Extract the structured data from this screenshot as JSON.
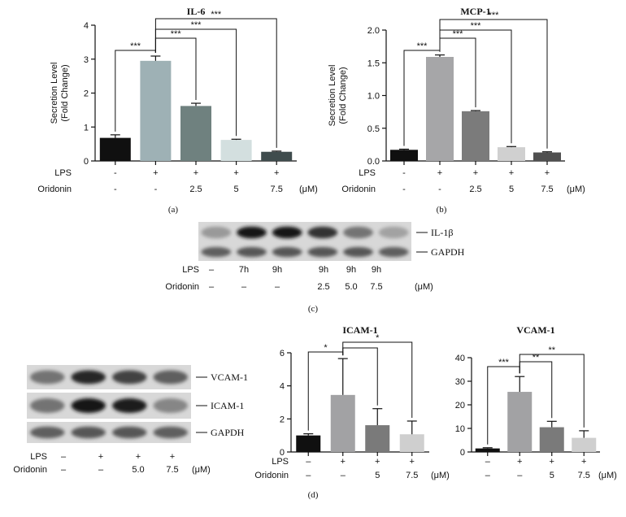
{
  "chart_data": [
    {
      "type": "bar",
      "panel": "(a)",
      "title": "IL-6",
      "ylabel": "Secretion Level (Fold Change)",
      "ylabel_lines": [
        "Secretion Level",
        "(Fold Change)"
      ],
      "ylim": [
        0,
        4
      ],
      "yticks": [
        "0",
        "1",
        "2",
        "3",
        "4"
      ],
      "categories": [
        "1",
        "2",
        "3",
        "4",
        "5"
      ],
      "values": [
        0.68,
        2.95,
        1.62,
        0.62,
        0.27
      ],
      "errors": [
        0.09,
        0.14,
        0.08,
        0.02,
        0.02
      ],
      "colors": [
        "#101010",
        "#9eb1b5",
        "#6f817f",
        "#d3dfdf",
        "#3f4c4d"
      ],
      "treatments": [
        {
          "label": "LPS",
          "values": [
            "-",
            "+",
            "+",
            "+",
            "+"
          ]
        },
        {
          "label": "Oridonin",
          "values": [
            "-",
            "-",
            "2.5",
            "5",
            "7.5"
          ]
        }
      ],
      "unit": "(μM)",
      "significance": [
        {
          "from": 0,
          "to": 1,
          "label": "***"
        },
        {
          "from": 1,
          "to": 2,
          "label": "***"
        },
        {
          "from": 1,
          "to": 3,
          "label": "***"
        },
        {
          "from": 1,
          "to": 4,
          "label": "***"
        }
      ]
    },
    {
      "type": "bar",
      "panel": "(b)",
      "title": "MCP-1",
      "ylabel": "Secretion Level (Fold Change)",
      "ylabel_lines": [
        "Secretion Level",
        "(Fold Change)"
      ],
      "ylim": [
        0,
        2
      ],
      "yticks": [
        "0.0",
        "0.5",
        "1.0",
        "1.5",
        "2.0"
      ],
      "categories": [
        "1",
        "2",
        "3",
        "4",
        "5"
      ],
      "values": [
        0.17,
        1.59,
        0.76,
        0.21,
        0.13
      ],
      "errors": [
        0.01,
        0.03,
        0.01,
        0.01,
        0.01
      ],
      "colors": [
        "#101010",
        "#a6a6a8",
        "#7b7b7b",
        "#d0d0d0",
        "#505050"
      ],
      "treatments": [
        {
          "label": "LPS",
          "values": [
            "-",
            "+",
            "+",
            "+",
            "+"
          ]
        },
        {
          "label": "Oridonin",
          "values": [
            "-",
            "-",
            "2.5",
            "5",
            "7.5"
          ]
        }
      ],
      "unit": "(μM)",
      "significance": [
        {
          "from": 0,
          "to": 1,
          "label": "***"
        },
        {
          "from": 1,
          "to": 2,
          "label": "***"
        },
        {
          "from": 1,
          "to": 3,
          "label": "***"
        },
        {
          "from": 1,
          "to": 4,
          "label": "***"
        }
      ]
    },
    {
      "type": "bar",
      "panel": "(d)",
      "title": "ICAM-1",
      "ylim": [
        0,
        6
      ],
      "yticks": [
        "0",
        "2",
        "4",
        "6"
      ],
      "categories": [
        "1",
        "2",
        "3",
        "4"
      ],
      "values": [
        1.0,
        3.45,
        1.62,
        1.07
      ],
      "errors": [
        0.1,
        2.2,
        1.0,
        0.8
      ],
      "colors": [
        "#101010",
        "#a2a2a4",
        "#7a7a7a",
        "#cfcfcf"
      ],
      "treatments": [
        {
          "label": "LPS",
          "values": [
            "–",
            "+",
            "+",
            "+"
          ]
        },
        {
          "label": "Oridonin",
          "values": [
            "–",
            "–",
            "5",
            "7.5"
          ]
        }
      ],
      "unit": "(μM)",
      "significance": [
        {
          "from": 0,
          "to": 1,
          "label": "*"
        },
        {
          "from": 1,
          "to": 2,
          "label": ""
        },
        {
          "from": 1,
          "to": 3,
          "label": "*"
        }
      ]
    },
    {
      "type": "bar",
      "panel": "(d)",
      "title": "VCAM-1",
      "ylim": [
        0,
        40
      ],
      "yticks": [
        "0",
        "10",
        "20",
        "30",
        "40"
      ],
      "categories": [
        "1",
        "2",
        "3",
        "4"
      ],
      "values": [
        1.5,
        25.5,
        10.5,
        6.0
      ],
      "errors": [
        0.3,
        6.5,
        2.5,
        3.0
      ],
      "colors": [
        "#101010",
        "#a2a2a4",
        "#7a7a7a",
        "#cfcfcf"
      ],
      "treatments": [
        {
          "values": [
            "–",
            "+",
            "+",
            "+"
          ]
        },
        {
          "values": [
            "–",
            "–",
            "5",
            "7.5"
          ]
        }
      ],
      "unit": "(μM)",
      "significance": [
        {
          "from": 0,
          "to": 1,
          "label": "***"
        },
        {
          "from": 1,
          "to": 2,
          "label": "**"
        },
        {
          "from": 1,
          "to": 3,
          "label": "**"
        }
      ]
    }
  ],
  "blot_c": {
    "panel": "(c)",
    "band_labels": [
      "IL-1β",
      "GAPDH"
    ],
    "lanes": 6,
    "intensities": {
      "IL-1β": [
        0.25,
        0.95,
        0.95,
        0.8,
        0.45,
        0.2
      ],
      "GAPDH": [
        0.55,
        0.6,
        0.6,
        0.6,
        0.6,
        0.55
      ]
    },
    "rows": [
      {
        "label": "LPS",
        "values": [
          "–",
          "7h",
          "9h",
          "9h",
          "9h",
          "9h"
        ]
      },
      {
        "label": "Oridonin",
        "values": [
          "–",
          "–",
          "–",
          "2.5",
          "5.0",
          "7.5"
        ]
      }
    ],
    "unit": "(μM)"
  },
  "blot_d": {
    "band_labels": [
      "VCAM-1",
      "ICAM-1",
      "GAPDH"
    ],
    "lanes": 4,
    "intensities": {
      "VCAM-1": [
        0.45,
        0.85,
        0.7,
        0.55
      ],
      "ICAM-1": [
        0.45,
        0.95,
        0.9,
        0.35
      ],
      "GAPDH": [
        0.55,
        0.6,
        0.6,
        0.55
      ]
    },
    "rows": [
      {
        "label": "LPS",
        "values": [
          "–",
          "+",
          "+",
          "+"
        ]
      },
      {
        "label": "Oridonin",
        "values": [
          "–",
          "–",
          "5.0",
          "7.5"
        ]
      }
    ],
    "unit": "(μM)"
  }
}
